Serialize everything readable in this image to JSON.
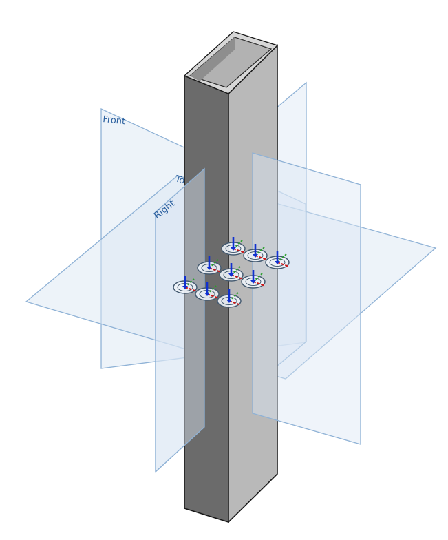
{
  "viewport": {
    "background": "#ffffff",
    "planes": {
      "front": {
        "label": "Front"
      },
      "top": {
        "label": "To"
      },
      "right": {
        "label": "Right"
      }
    },
    "plane_fill": "#dbe7f3",
    "plane_stroke": "#8fb2d6",
    "plane_label_color": "#2a5f9e",
    "tube": {
      "face_dark": "#6b6b6b",
      "face_light": "#b9b9b9",
      "inner_wall": "#a9a9a9",
      "rim": "#d7d7d7",
      "edge": "#1a1a1a"
    },
    "mate_connectors": {
      "count": 9,
      "axis_colors": {
        "z": "#1030d0",
        "y": "#2aa02a",
        "x": "#d01818"
      },
      "ring_fill": "#eef3f8",
      "ring_stroke": "#445a70"
    }
  }
}
